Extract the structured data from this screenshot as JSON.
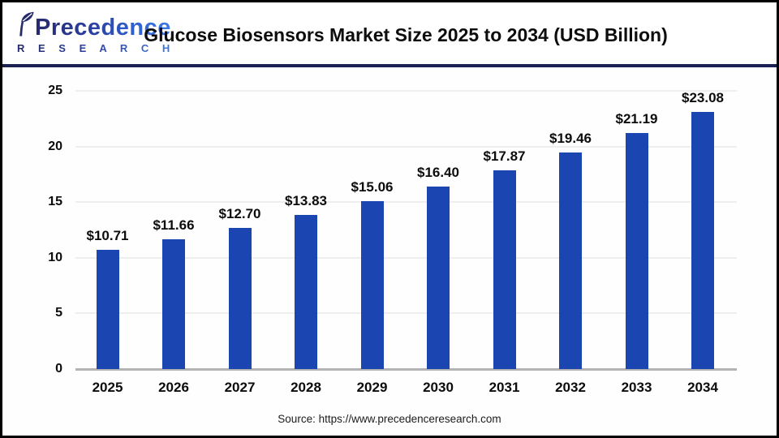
{
  "logo": {
    "name": "Precedence",
    "sub": "R E S E A R C H",
    "leaf_color": "#252a6a"
  },
  "header": {
    "title": "Glucose Biosensors Market Size 2025 to 2034 (USD Billion)"
  },
  "chart_data": {
    "type": "bar",
    "title": "Glucose Biosensors Market Size 2025 to 2034 (USD Billion)",
    "categories": [
      "2025",
      "2026",
      "2027",
      "2028",
      "2029",
      "2030",
      "2031",
      "2032",
      "2033",
      "2034"
    ],
    "values": [
      10.71,
      11.66,
      12.7,
      13.83,
      15.06,
      16.4,
      17.87,
      19.46,
      21.19,
      23.08
    ],
    "value_labels": [
      "$10.71",
      "$11.66",
      "$12.70",
      "$13.83",
      "$15.06",
      "$16.40",
      "$17.87",
      "$19.46",
      "$21.19",
      "$23.08"
    ],
    "xlabel": "",
    "ylabel": "",
    "ylim": [
      0,
      25
    ],
    "yticks": [
      0,
      5,
      10,
      15,
      20,
      25
    ],
    "ytick_labels": [
      "0",
      "5",
      "10",
      "15",
      "20",
      "25"
    ],
    "grid": true,
    "legend": "none",
    "bar_color": "#1b46b1"
  },
  "colors": {
    "bar": "#1b46b1",
    "gridline": "#eeeeee",
    "baseline": "#b3b3b3",
    "divider": "#1b2153",
    "frame_border": "#000000"
  },
  "footer": {
    "source": "Source: https://www.precedenceresearch.com"
  }
}
